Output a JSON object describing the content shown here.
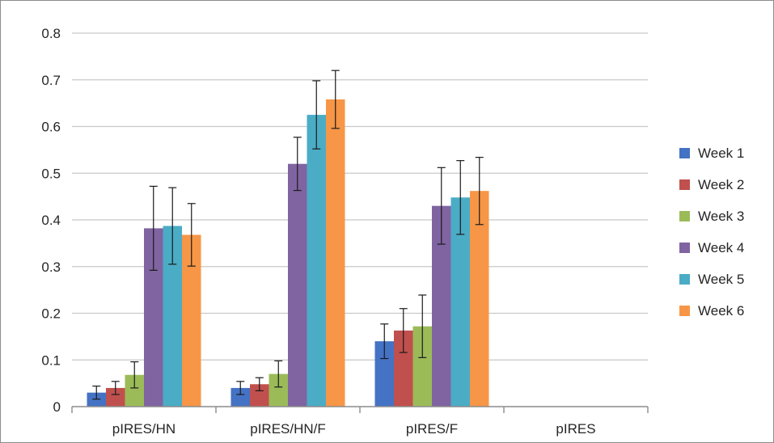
{
  "chart_data": {
    "type": "bar",
    "categories": [
      "pIRES/HN",
      "pIRES/HN/F",
      "pIRES/F",
      "pIRES"
    ],
    "ylim": [
      0,
      0.8
    ],
    "yticks": [
      "0",
      "0.1",
      "0.2",
      "0.3",
      "0.4",
      "0.5",
      "0.6",
      "0.7",
      "0.8"
    ],
    "ytick_values": [
      0,
      0.1,
      0.2,
      0.3,
      0.4,
      0.5,
      0.6,
      0.7,
      0.8
    ],
    "grid": "horizontal",
    "legend_position": "right",
    "error_bars": true,
    "series": [
      {
        "name": "Week 1",
        "color": "#4472c4",
        "values": [
          0.03,
          0.04,
          0.14,
          null
        ],
        "errors": [
          0.014,
          0.014,
          0.037,
          null
        ]
      },
      {
        "name": "Week 2",
        "color": "#c0504d",
        "values": [
          0.04,
          0.048,
          0.163,
          null
        ],
        "errors": [
          0.014,
          0.014,
          0.047,
          null
        ]
      },
      {
        "name": "Week 3",
        "color": "#9bbb59",
        "values": [
          0.068,
          0.07,
          0.172,
          null
        ],
        "errors": [
          0.028,
          0.028,
          0.067,
          null
        ]
      },
      {
        "name": "Week 4",
        "color": "#8064a2",
        "values": [
          0.382,
          0.52,
          0.43,
          null
        ],
        "errors": [
          0.09,
          0.057,
          0.082,
          null
        ]
      },
      {
        "name": "Week 5",
        "color": "#4bacc6",
        "values": [
          0.387,
          0.625,
          0.448,
          null
        ],
        "errors": [
          0.082,
          0.073,
          0.079,
          null
        ]
      },
      {
        "name": "Week 6",
        "color": "#f79646",
        "values": [
          0.368,
          0.658,
          0.462,
          null
        ],
        "errors": [
          0.067,
          0.062,
          0.072,
          null
        ]
      }
    ]
  }
}
